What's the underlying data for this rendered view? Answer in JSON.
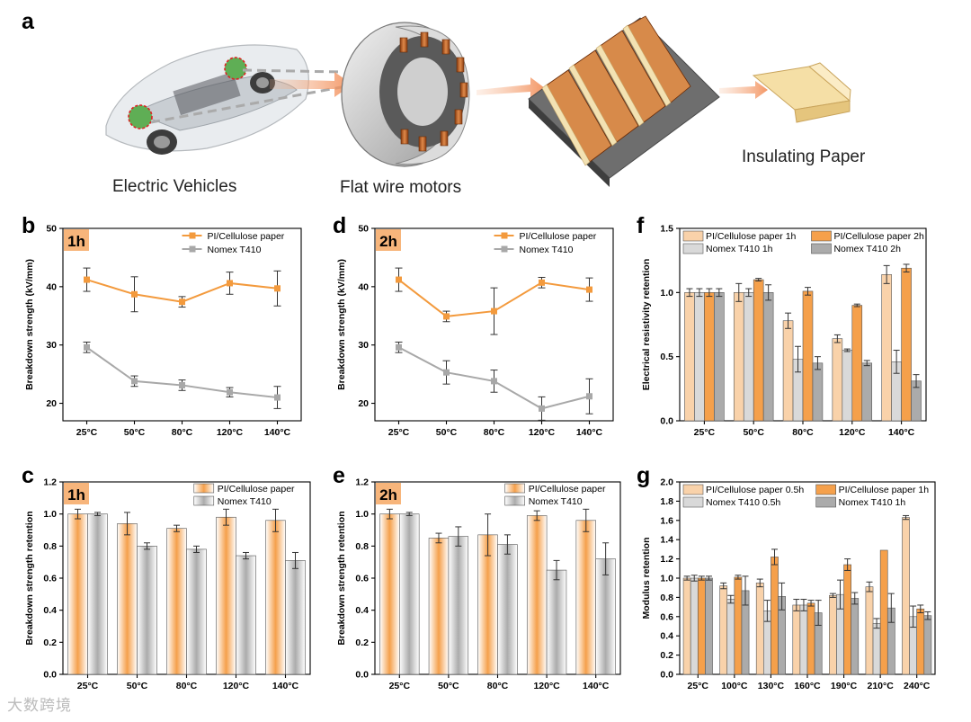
{
  "panel_a": {
    "letter": "a",
    "captions": {
      "ev": "Electric Vehicles",
      "motor": "Flat wire motors",
      "paper": "Insulating Paper"
    }
  },
  "colors": {
    "orange_dark": "#F5A04B",
    "orange_light": "#F9D2AA",
    "gray_dark": "#ABABAB",
    "gray_light": "#D9D9D9",
    "tag_bg": "#F7B57B",
    "line_orange": "#F39A3D",
    "line_gray": "#A8A8A8"
  },
  "chart_data": [
    {
      "id": "b",
      "letter": "b",
      "tag": "1h",
      "type": "line",
      "categories": [
        "25°C",
        "50°C",
        "80°C",
        "120°C",
        "140°C"
      ],
      "ylabel": "Breakdown strength (kV/mm)",
      "ylim": [
        17,
        50
      ],
      "yticks": [
        20,
        30,
        40,
        50
      ],
      "legend_position": "top-right",
      "series": [
        {
          "name": "PI/Cellulose paper",
          "color": "#F39A3D",
          "marker": "square",
          "values": [
            41.2,
            38.7,
            37.4,
            40.6,
            39.7
          ],
          "errors": [
            2.0,
            3.0,
            0.9,
            1.9,
            3.0
          ]
        },
        {
          "name": "Nomex T410",
          "color": "#A8A8A8",
          "marker": "square",
          "values": [
            29.6,
            23.8,
            23.1,
            21.9,
            21.0
          ],
          "errors": [
            0.9,
            0.9,
            0.9,
            0.8,
            1.9
          ]
        }
      ]
    },
    {
      "id": "d",
      "letter": "d",
      "tag": "2h",
      "type": "line",
      "categories": [
        "25°C",
        "50°C",
        "80°C",
        "120°C",
        "140°C"
      ],
      "ylabel": "Breakdown strength (kV/mm)",
      "ylim": [
        17,
        50
      ],
      "yticks": [
        20,
        30,
        40,
        50
      ],
      "legend_position": "top-right",
      "series": [
        {
          "name": "PI/Cellulose paper",
          "color": "#F39A3D",
          "marker": "square",
          "values": [
            41.2,
            34.9,
            35.8,
            40.7,
            39.5
          ],
          "errors": [
            2.0,
            0.9,
            4.0,
            0.9,
            2.0
          ]
        },
        {
          "name": "Nomex T410",
          "color": "#A8A8A8",
          "marker": "square",
          "values": [
            29.6,
            25.3,
            23.8,
            19.1,
            21.2
          ],
          "errors": [
            0.9,
            2.0,
            1.9,
            2.0,
            3.0
          ]
        }
      ]
    },
    {
      "id": "f",
      "letter": "f",
      "type": "bar",
      "categories": [
        "25°C",
        "50°C",
        "80°C",
        "120°C",
        "140°C"
      ],
      "ylabel": "Electrical resistivity retention",
      "ylim": [
        0,
        1.5
      ],
      "yticks": [
        0.0,
        0.5,
        1.0,
        1.5
      ],
      "legend_position": "top",
      "series": [
        {
          "name": "PI/Cellulose paper 1h",
          "color": "#F9D2AA",
          "values": [
            1.0,
            1.0,
            0.78,
            0.64,
            1.14
          ],
          "errors": [
            0.03,
            0.07,
            0.06,
            0.03,
            0.07
          ]
        },
        {
          "name": "Nomex T410 1h",
          "color": "#D9D9D9",
          "values": [
            1.0,
            1.0,
            0.48,
            0.55,
            0.46
          ],
          "errors": [
            0.03,
            0.03,
            0.1,
            0.01,
            0.09
          ]
        },
        {
          "name": "PI/Cellulose paper 2h",
          "color": "#F5A04B",
          "values": [
            1.0,
            1.1,
            1.01,
            0.9,
            1.19
          ],
          "errors": [
            0.03,
            0.01,
            0.03,
            0.01,
            0.03
          ]
        },
        {
          "name": "Nomex T410 2h",
          "color": "#ABABAB",
          "values": [
            1.0,
            1.0,
            0.45,
            0.45,
            0.31
          ],
          "errors": [
            0.03,
            0.06,
            0.05,
            0.02,
            0.05
          ]
        }
      ]
    },
    {
      "id": "c",
      "letter": "c",
      "tag": "1h",
      "type": "bar",
      "categories": [
        "25°C",
        "50°C",
        "80°C",
        "120°C",
        "140°C"
      ],
      "ylabel": "Breakdown strength retention",
      "ylim": [
        0,
        1.2
      ],
      "yticks": [
        0.0,
        0.2,
        0.4,
        0.6,
        0.8,
        1.0,
        1.2
      ],
      "legend_position": "top-right",
      "gradient": true,
      "series": [
        {
          "name": "PI/Cellulose paper",
          "color": "#F5A04B",
          "values": [
            1.0,
            0.94,
            0.91,
            0.98,
            0.96
          ],
          "errors": [
            0.03,
            0.07,
            0.02,
            0.05,
            0.07
          ]
        },
        {
          "name": "Nomex T410",
          "color": "#ABABAB",
          "values": [
            1.0,
            0.8,
            0.78,
            0.74,
            0.71
          ],
          "errors": [
            0.01,
            0.02,
            0.02,
            0.02,
            0.05
          ]
        }
      ]
    },
    {
      "id": "e",
      "letter": "e",
      "tag": "2h",
      "type": "bar",
      "categories": [
        "25°C",
        "50°C",
        "80°C",
        "120°C",
        "140°C"
      ],
      "ylabel": "Breakdown strength retention",
      "ylim": [
        0,
        1.2
      ],
      "yticks": [
        0.0,
        0.2,
        0.4,
        0.6,
        0.8,
        1.0,
        1.2
      ],
      "legend_position": "top-right",
      "gradient": true,
      "series": [
        {
          "name": "PI/Cellulose paper",
          "color": "#F5A04B",
          "values": [
            1.0,
            0.85,
            0.87,
            0.99,
            0.96
          ],
          "errors": [
            0.03,
            0.03,
            0.13,
            0.03,
            0.07
          ]
        },
        {
          "name": "Nomex T410",
          "color": "#ABABAB",
          "values": [
            1.0,
            0.86,
            0.81,
            0.65,
            0.72
          ],
          "errors": [
            0.01,
            0.06,
            0.06,
            0.06,
            0.1
          ]
        }
      ]
    },
    {
      "id": "g",
      "letter": "g",
      "type": "bar",
      "categories": [
        "25°C",
        "100°C",
        "130°C",
        "160°C",
        "190°C",
        "210°C",
        "240°C"
      ],
      "ylabel": "Modulus retention",
      "ylim": [
        0,
        2.0
      ],
      "yticks": [
        0.0,
        0.2,
        0.4,
        0.6,
        0.8,
        1.0,
        1.2,
        1.4,
        1.6,
        1.8,
        2.0
      ],
      "legend_position": "top",
      "series": [
        {
          "name": "PI/Cellulose paper 0.5h",
          "color": "#F9D2AA",
          "values": [
            1.0,
            0.92,
            0.95,
            0.72,
            0.82,
            0.91,
            1.63
          ],
          "errors": [
            0.02,
            0.03,
            0.04,
            0.06,
            0.02,
            0.05,
            0.02
          ]
        },
        {
          "name": "Nomex T410 0.5h",
          "color": "#D9D9D9",
          "values": [
            1.0,
            0.78,
            0.66,
            0.72,
            0.83,
            0.53,
            0.6
          ],
          "errors": [
            0.03,
            0.04,
            0.11,
            0.06,
            0.15,
            0.05,
            0.11
          ]
        },
        {
          "name": "PI/Cellulose paper 1h",
          "color": "#F5A04B",
          "values": [
            1.0,
            1.01,
            1.22,
            0.74,
            1.14,
            1.29,
            0.68
          ],
          "errors": [
            0.02,
            0.02,
            0.08,
            0.03,
            0.06,
            0.0,
            0.04
          ]
        },
        {
          "name": "Nomex T410 1h",
          "color": "#ABABAB",
          "values": [
            1.0,
            0.87,
            0.81,
            0.64,
            0.79,
            0.69,
            0.61
          ],
          "errors": [
            0.02,
            0.15,
            0.14,
            0.13,
            0.06,
            0.15,
            0.04
          ]
        }
      ]
    }
  ],
  "watermark": "大数跨境"
}
